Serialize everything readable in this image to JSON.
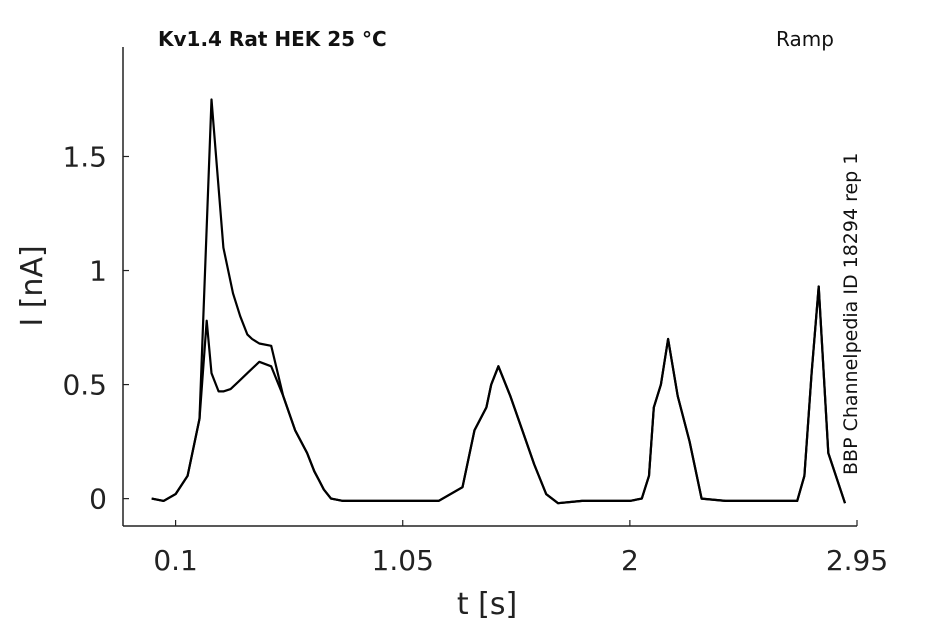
{
  "chart_data": {
    "type": "line",
    "title": "Kv1.4  Rat  HEK  25 °C",
    "protocol_label": "Ramp",
    "source_label": "BBP Channelpedia ID 18294 rep 1",
    "xlabel": "t [s]",
    "ylabel": "I [nA]",
    "xlim": [
      -0.12,
      2.95
    ],
    "ylim": [
      -0.12,
      1.98
    ],
    "x_ticks": [
      0.1,
      1.05,
      2,
      2.95
    ],
    "x_tick_labels": [
      "0.1",
      "1.05",
      "2",
      "2.95"
    ],
    "y_ticks": [
      0,
      0.5,
      1,
      1.5
    ],
    "y_tick_labels": [
      "0",
      "0.5",
      "1",
      "1.5"
    ],
    "grid": false,
    "line_color": "#000000",
    "series": [
      {
        "x": [
          -0.0,
          0.05,
          0.1,
          0.15,
          0.2,
          0.25,
          0.3,
          0.34,
          0.37,
          0.4,
          0.42,
          0.45,
          0.5,
          0.55,
          0.6,
          0.65,
          0.68,
          0.7,
          0.72,
          0.75,
          0.8,
          0.9,
          1.0,
          1.1,
          1.2,
          1.3,
          1.35,
          1.4,
          1.42,
          1.45,
          1.5,
          1.55,
          1.6,
          1.65,
          1.7,
          1.8,
          1.9,
          2.0,
          2.05,
          2.08,
          2.1,
          2.13,
          2.16,
          2.2,
          2.25,
          2.3,
          2.4,
          2.5,
          2.6,
          2.65,
          2.7,
          2.73,
          2.76,
          2.79,
          2.83,
          2.9
        ],
        "y": [
          0.0,
          -0.01,
          0.02,
          0.1,
          0.35,
          1.75,
          1.1,
          0.9,
          0.8,
          0.72,
          0.7,
          0.68,
          0.67,
          0.45,
          0.3,
          0.2,
          0.12,
          0.08,
          0.04,
          0.0,
          -0.01,
          -0.01,
          -0.01,
          -0.01,
          -0.01,
          0.05,
          0.3,
          0.4,
          0.5,
          0.58,
          0.45,
          0.3,
          0.15,
          0.02,
          -0.02,
          -0.01,
          -0.01,
          -0.01,
          0.0,
          0.1,
          0.4,
          0.5,
          0.7,
          0.45,
          0.25,
          0.0,
          -0.01,
          -0.01,
          -0.01,
          -0.01,
          -0.01,
          0.1,
          0.55,
          0.93,
          0.2,
          -0.02
        ]
      },
      {
        "x": [
          -0.0,
          0.05,
          0.1,
          0.15,
          0.2,
          0.23,
          0.25,
          0.28,
          0.3,
          0.33,
          0.35,
          0.4,
          0.45,
          0.5,
          0.55,
          0.6,
          0.65,
          0.68,
          0.7,
          0.72,
          0.75,
          0.8,
          0.9,
          1.0,
          1.1,
          1.2,
          1.3,
          1.35,
          1.4,
          1.42,
          1.45,
          1.5,
          1.55,
          1.6,
          1.65,
          1.7,
          1.8,
          1.9,
          2.0,
          2.05,
          2.08,
          2.1,
          2.13,
          2.16,
          2.2,
          2.25,
          2.3,
          2.4,
          2.5,
          2.6,
          2.65,
          2.7,
          2.73,
          2.76,
          2.79,
          2.83,
          2.9
        ],
        "y": [
          0.0,
          -0.01,
          0.02,
          0.1,
          0.35,
          0.78,
          0.55,
          0.47,
          0.47,
          0.48,
          0.5,
          0.55,
          0.6,
          0.58,
          0.45,
          0.3,
          0.2,
          0.12,
          0.08,
          0.04,
          0.0,
          -0.01,
          -0.01,
          -0.01,
          -0.01,
          -0.01,
          0.05,
          0.3,
          0.4,
          0.5,
          0.58,
          0.45,
          0.3,
          0.15,
          0.02,
          -0.02,
          -0.01,
          -0.01,
          -0.01,
          0.0,
          0.1,
          0.4,
          0.5,
          0.7,
          0.45,
          0.25,
          0.0,
          -0.01,
          -0.01,
          -0.01,
          -0.01,
          -0.01,
          0.1,
          0.55,
          0.93,
          0.2,
          -0.02
        ]
      }
    ]
  }
}
